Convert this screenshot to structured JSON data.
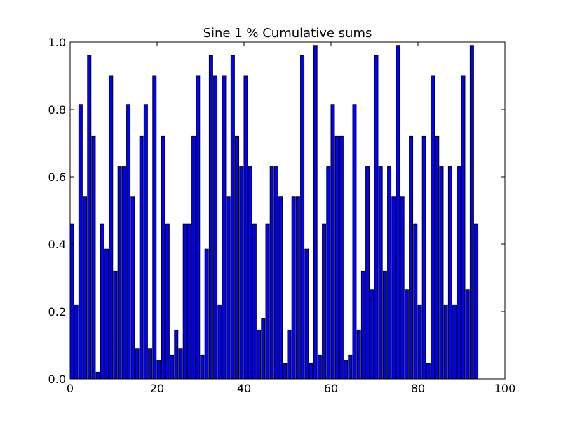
{
  "chart_data": {
    "type": "bar",
    "title": "Sine 1 % Cumulative sums",
    "xlabel": "",
    "ylabel": "",
    "xlim": [
      0,
      100
    ],
    "ylim": [
      0,
      1.0
    ],
    "x_ticks": [
      0,
      20,
      40,
      60,
      80,
      100
    ],
    "x_tick_labels": [
      "0",
      "20",
      "40",
      "60",
      "80",
      "100"
    ],
    "y_ticks": [
      0.0,
      0.2,
      0.4,
      0.6,
      0.8,
      1.0
    ],
    "y_tick_labels": [
      "0.0",
      "0.2",
      "0.4",
      "0.6",
      "0.8",
      "1.0"
    ],
    "grid": false,
    "bar_color": "#0000ff",
    "bar_edge_color": "#000000",
    "bar_width": 0.8,
    "x": [
      0,
      1,
      2,
      3,
      4,
      5,
      6,
      7,
      8,
      9,
      10,
      11,
      12,
      13,
      14,
      15,
      16,
      17,
      18,
      19,
      20,
      21,
      22,
      23,
      24,
      25,
      26,
      27,
      28,
      29,
      30,
      31,
      32,
      33,
      34,
      35,
      36,
      37,
      38,
      39,
      40,
      41,
      42,
      43,
      44,
      45,
      46,
      47,
      48,
      49,
      50,
      51,
      52,
      53,
      54,
      55,
      56,
      57,
      58,
      59,
      60,
      61,
      62,
      63,
      64,
      65,
      66,
      67,
      68,
      69,
      70,
      71,
      72,
      73,
      74,
      75,
      76,
      77,
      78,
      79,
      80,
      81,
      82,
      83,
      84,
      85,
      86,
      87,
      88,
      89,
      90,
      91,
      92,
      93
    ],
    "values": [
      0.46,
      0.22,
      0.815,
      0.54,
      0.96,
      0.72,
      0.02,
      0.46,
      0.385,
      0.9,
      0.32,
      0.63,
      0.63,
      0.815,
      0.54,
      0.09,
      0.72,
      0.815,
      0.09,
      0.9,
      0.055,
      0.72,
      0.46,
      0.07,
      0.145,
      0.09,
      0.46,
      0.46,
      0.72,
      0.9,
      0.07,
      0.385,
      0.96,
      0.9,
      0.22,
      0.9,
      0.54,
      0.96,
      0.72,
      0.63,
      0.9,
      0.63,
      0.46,
      0.145,
      0.18,
      0.46,
      0.63,
      0.63,
      0.54,
      0.045,
      0.145,
      0.54,
      0.54,
      0.96,
      0.385,
      0.045,
      0.99,
      0.07,
      0.46,
      0.63,
      0.815,
      0.72,
      0.72,
      0.055,
      0.07,
      0.815,
      0.145,
      0.32,
      0.63,
      0.265,
      0.96,
      0.63,
      0.32,
      0.63,
      0.54,
      0.99,
      0.54,
      0.265,
      0.72,
      0.46,
      0.22,
      0.72,
      0.045,
      0.9,
      0.72,
      0.63,
      0.22,
      0.63,
      0.22,
      0.63,
      0.9,
      0.265,
      0.99,
      0.46
    ]
  }
}
